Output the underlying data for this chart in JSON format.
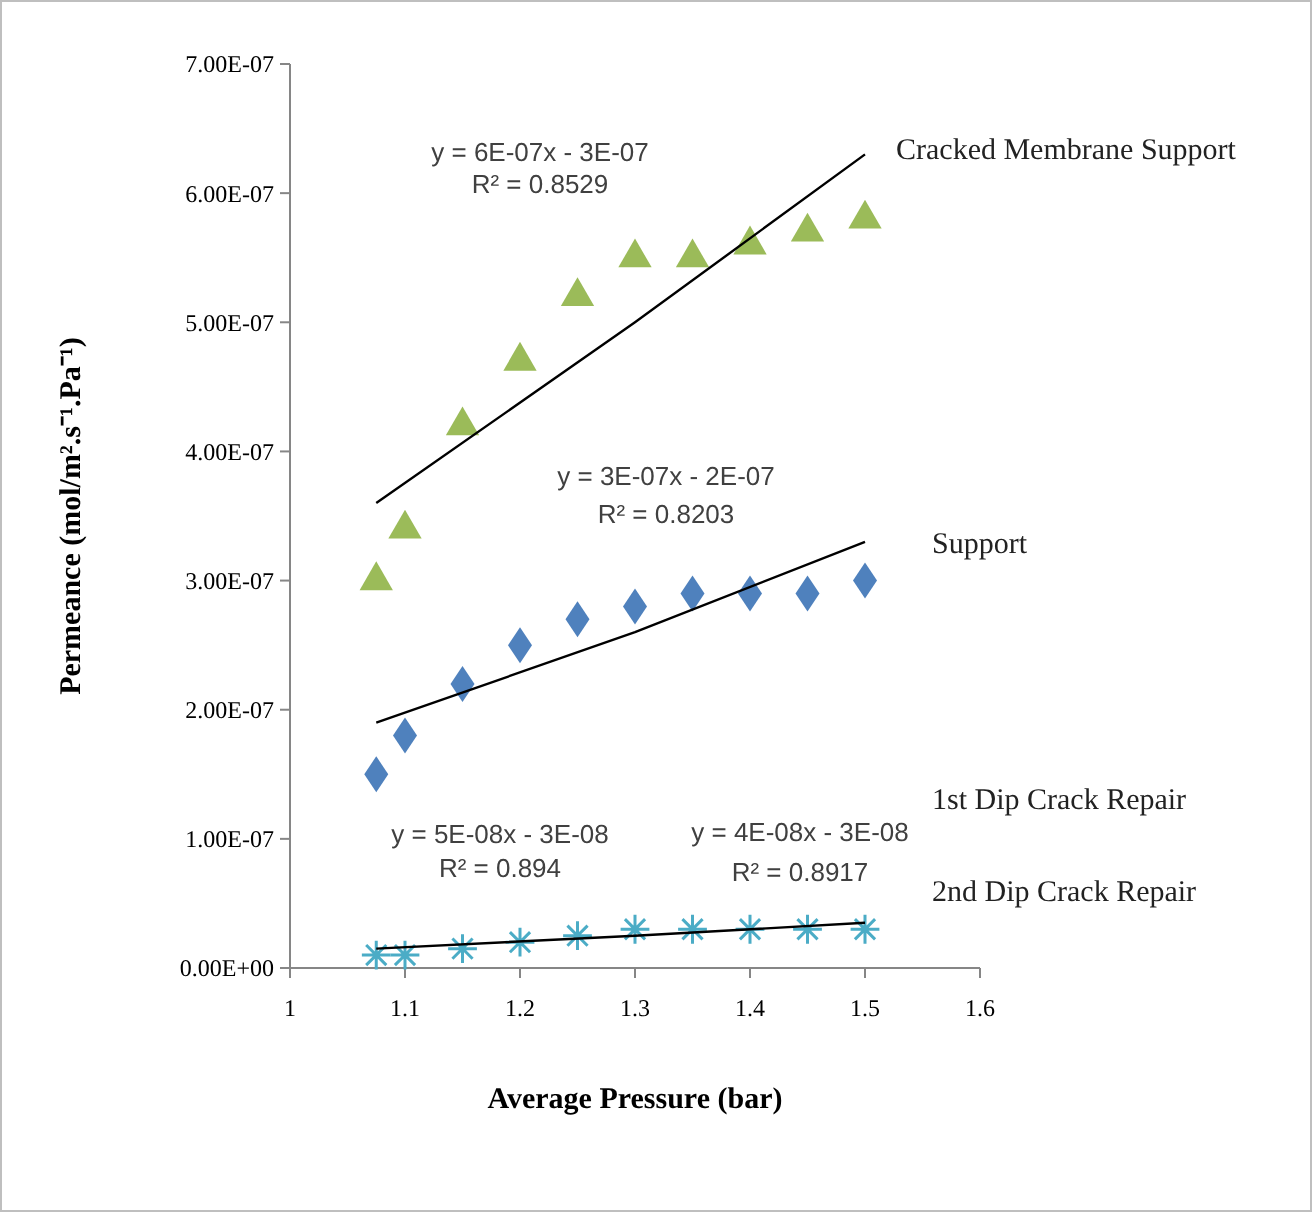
{
  "chart_data": {
    "type": "scatter",
    "xlabel": "Average Pressure (bar)",
    "ylabel": "Permeance (mol/m².s⁻¹.Pa⁻¹)",
    "x": [
      1.075,
      1.1,
      1.15,
      1.2,
      1.25,
      1.3,
      1.35,
      1.4,
      1.45,
      1.5
    ],
    "series": [
      {
        "name": "Cracked Membrane Support",
        "color": "#9bbb59",
        "marker": "triangle",
        "values": [
          3e-07,
          3.4e-07,
          4.2e-07,
          4.7e-07,
          5.2e-07,
          5.5e-07,
          5.5e-07,
          5.6e-07,
          5.7e-07,
          5.8e-07
        ]
      },
      {
        "name": "Support",
        "color": "#4f81bd",
        "marker": "diamond",
        "values": [
          1.5e-07,
          1.8e-07,
          2.2e-07,
          2.5e-07,
          2.7e-07,
          2.8e-07,
          2.9e-07,
          2.9e-07,
          2.9e-07,
          3e-07
        ]
      },
      {
        "name": "1st Dip Crack Repair",
        "marker": "cross",
        "values": [
          null,
          null,
          null,
          null,
          null,
          null,
          null,
          null,
          null,
          null
        ]
      },
      {
        "name": "2nd Dip Crack Repair",
        "color": "#4bacc6",
        "marker": "cross",
        "values": [
          1e-08,
          1e-08,
          1.5e-08,
          2e-08,
          2.5e-08,
          3e-08,
          3e-08,
          3e-08,
          3e-08,
          3e-08
        ]
      },
      {
        "type": "line",
        "color": "#000000",
        "x": [
          1.075,
          1.3,
          1.5
        ],
        "values": [
          3.6e-07,
          5e-07,
          6.3e-07
        ]
      },
      {
        "type": "line",
        "color": "#000000",
        "x": [
          1.075,
          1.3,
          1.5
        ],
        "values": [
          1.9e-07,
          2.6e-07,
          3.3e-07
        ]
      },
      {
        "type": "line",
        "color": "#000000",
        "x": [
          1.075,
          1.3,
          1.5
        ],
        "values": [
          1.5e-08,
          2.5e-08,
          3.5e-08
        ]
      }
    ],
    "xlim": [
      1,
      1.6
    ],
    "xticks": [
      1,
      1.1,
      1.2,
      1.3,
      1.4,
      1.5,
      1.6
    ],
    "ylim": [
      0,
      7e-07
    ],
    "yticks": [
      {
        "value": 0,
        "label": "0.00E+00"
      },
      {
        "value": 1e-07,
        "label": "1.00E-07"
      },
      {
        "value": 2e-07,
        "label": "2.00E-07"
      },
      {
        "value": 3e-07,
        "label": "3.00E-07"
      },
      {
        "value": 4e-07,
        "label": "4.00E-07"
      },
      {
        "value": 5e-07,
        "label": "5.00E-07"
      },
      {
        "value": 6e-07,
        "label": "6.00E-07"
      },
      {
        "value": 7e-07,
        "label": "7.00E-07"
      }
    ],
    "grid": false,
    "legend": false,
    "annotations": [
      "y = 6E-07x - 3E-07",
      "R² = 0.8529",
      "y = 3E-07x - 2E-07",
      "R² = 0.8203",
      "y = 5E-08x - 3E-08",
      "R² = 0.894",
      "y = 4E-08x - 3E-08",
      "R² = 0.8917"
    ]
  }
}
